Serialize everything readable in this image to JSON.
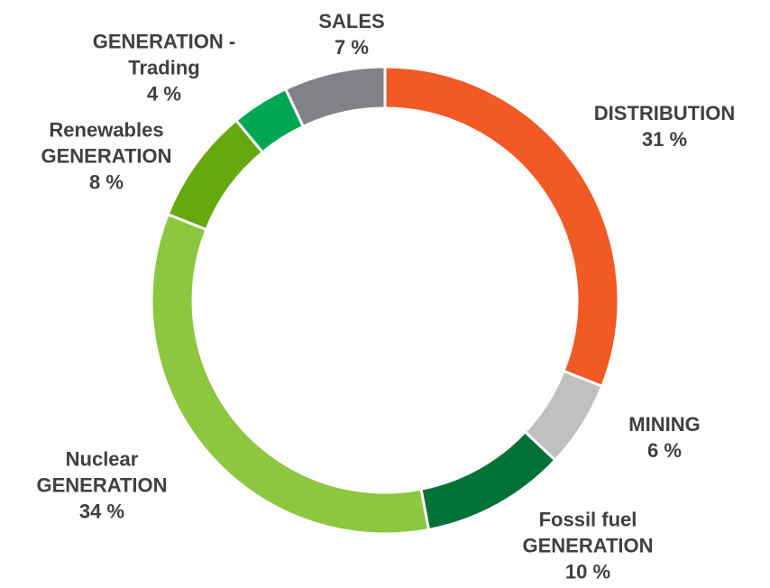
{
  "chart_data": {
    "type": "donut",
    "categories": [
      "DISTRIBUTION",
      "MINING",
      "Fossil fuel\nGENERATION",
      "Nuclear\nGENERATION",
      "Renewables\nGENERATION",
      "GENERATION -\nTrading",
      "SALES"
    ],
    "values": [
      31,
      6,
      10,
      34,
      8,
      4,
      7
    ],
    "value_labels": [
      "31 %",
      "6 %",
      "10 %",
      "34 %",
      "8 %",
      "4 %",
      "7 %"
    ],
    "colors": [
      "#f15a24",
      "#c0c0c0",
      "#007236",
      "#8dc63f",
      "#66a80f",
      "#00a651",
      "#808285"
    ]
  }
}
